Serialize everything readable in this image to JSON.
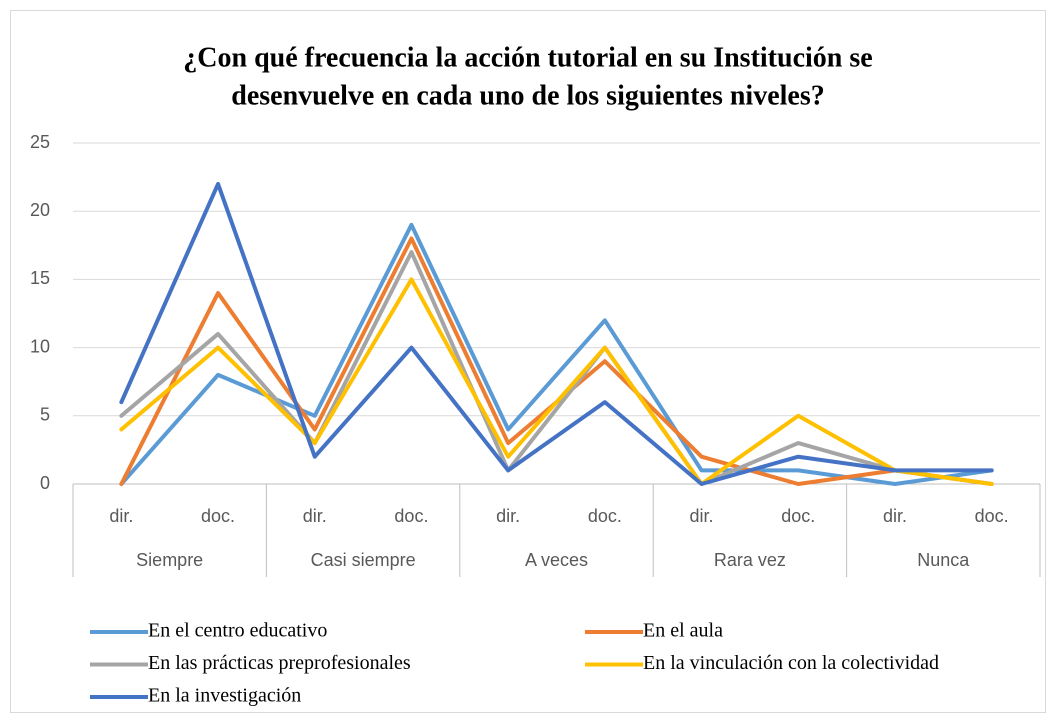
{
  "chart_data": {
    "type": "line",
    "title": [
      "¿Con qué frecuencia la acción tutorial en su Institución se",
      "desenvuelve en cada uno de los siguientes niveles?"
    ],
    "categories": [
      "dir.",
      "doc.",
      "dir.",
      "doc.",
      "dir.",
      "doc.",
      "dir.",
      "doc.",
      "dir.",
      "doc."
    ],
    "category_groups": [
      "Siempre",
      "Casi siempre",
      "A veces",
      "Rara vez",
      "Nunca"
    ],
    "series": [
      {
        "name": "En el centro educativo",
        "color": "#5b9bd5",
        "values": [
          0,
          8,
          5,
          19,
          4,
          12,
          1,
          1,
          0,
          1
        ]
      },
      {
        "name": "En el aula",
        "color": "#ed7d31",
        "values": [
          0,
          14,
          4,
          18,
          3,
          9,
          2,
          0,
          1,
          0
        ]
      },
      {
        "name": "En las prácticas preprofesionales",
        "color": "#a5a5a5",
        "values": [
          5,
          11,
          3,
          17,
          1,
          10,
          0,
          3,
          1,
          0
        ]
      },
      {
        "name": "En la vinculación con la colectividad",
        "color": "#ffc000",
        "values": [
          4,
          10,
          3,
          15,
          2,
          10,
          0,
          5,
          1,
          0
        ]
      },
      {
        "name": "En la investigación",
        "color": "#4472c4",
        "values": [
          6,
          22,
          2,
          10,
          1,
          6,
          0,
          2,
          1,
          1
        ]
      }
    ],
    "ylim": [
      0,
      25
    ],
    "yticks": [
      0,
      5,
      10,
      15,
      20,
      25
    ],
    "grid": true,
    "legend": "bottom"
  }
}
